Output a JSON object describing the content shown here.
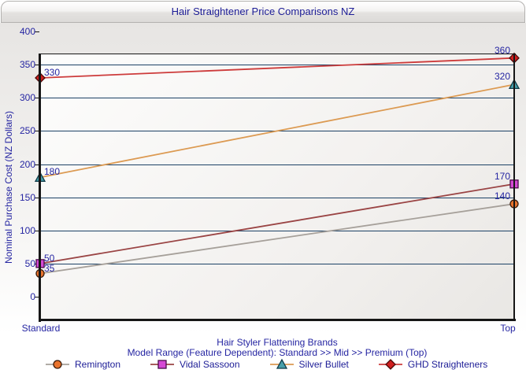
{
  "title": "Hair Straightener Price Comparisons NZ",
  "colors": {
    "text_navy": "#1c1c96",
    "tick_navy": "#2525a2",
    "gridline": "#1d4266",
    "axis": "#161616"
  },
  "chart_data": {
    "type": "line",
    "title": "Hair Straightener Price Comparisons NZ",
    "categories": [
      "Standard",
      "Top"
    ],
    "series": [
      {
        "name": "Remington",
        "values": [
          35,
          140
        ],
        "line_color": "#a6a09a",
        "marker": "circle",
        "marker_fill": "#e9732d",
        "marker_stroke": "#3a1a0a"
      },
      {
        "name": "Vidal Sassoon",
        "values": [
          50,
          170
        ],
        "line_color": "#9a4444",
        "marker": "square",
        "marker_fill": "#d549d5",
        "marker_stroke": "#4a0a4a"
      },
      {
        "name": "Silver Bullet",
        "values": [
          180,
          320
        ],
        "line_color": "#dc9a52",
        "marker": "triangle",
        "marker_fill": "#49a0aa",
        "marker_stroke": "#0e3a48"
      },
      {
        "name": "GHD Straighteners",
        "values": [
          330,
          360
        ],
        "line_color": "#cd3b3b",
        "marker": "diamond",
        "marker_fill": "#d01f1f",
        "marker_stroke": "#4a0808"
      }
    ],
    "data_labels": [
      [
        35,
        140
      ],
      [
        50,
        170
      ],
      [
        180,
        320
      ],
      [
        330,
        360
      ]
    ],
    "xlabel_line1": "Hair Styler Flattening Brands",
    "xlabel_line2": "Model Range (Feature Dependent): Standard >> Mid >> Premium (Top)",
    "ylabel": "Nominal Purchase Cost (NZ Dollars)",
    "ylim": [
      0,
      400
    ],
    "yticks": [
      0,
      50,
      100,
      150,
      200,
      250,
      300,
      350,
      400
    ],
    "grid": "horizontal",
    "legend_position": "bottom"
  }
}
